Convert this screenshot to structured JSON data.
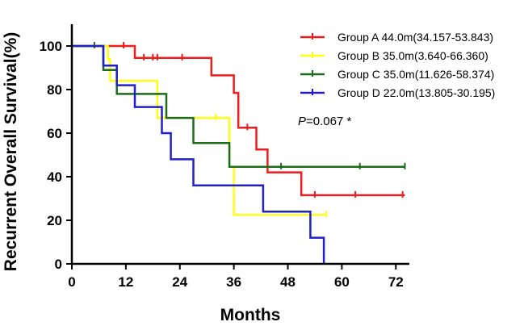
{
  "chart_data": {
    "type": "line",
    "subtype": "kaplan-meier step curve",
    "title": "",
    "xlabel": "Months",
    "ylabel": "Recurrent Overall Survival(%)",
    "xlim": [
      0,
      75
    ],
    "ylim": [
      0,
      110
    ],
    "x_ticks": [
      0,
      12,
      24,
      36,
      48,
      60,
      72
    ],
    "y_ticks": [
      0,
      20,
      40,
      60,
      80,
      100
    ],
    "annotation": {
      "italic": "P",
      "text": "=0.067 *"
    },
    "legend_position": "top-right",
    "series": [
      {
        "name": "Group A",
        "label": "Group A 44.0m(34.157-53.843)",
        "color": "#ee1c1c",
        "steps": [
          [
            0,
            100
          ],
          [
            14,
            100
          ],
          [
            14,
            94.5
          ],
          [
            31,
            94.5
          ],
          [
            31,
            86.5
          ],
          [
            36,
            86.5
          ],
          [
            36,
            78.5
          ],
          [
            37,
            78.5
          ],
          [
            37,
            62.5
          ],
          [
            41,
            62.5
          ],
          [
            41,
            52.5
          ],
          [
            43.5,
            52.5
          ],
          [
            43.5,
            42
          ],
          [
            51,
            42
          ],
          [
            51,
            31.5
          ],
          [
            74,
            31.5
          ]
        ],
        "censors": [
          [
            11.5,
            100
          ],
          [
            16,
            94.5
          ],
          [
            18,
            94.5
          ],
          [
            19,
            94.5
          ],
          [
            24.5,
            94.5
          ],
          [
            39,
            62.5
          ],
          [
            54,
            31.5
          ],
          [
            63,
            31.5
          ],
          [
            73.5,
            31.5
          ]
        ]
      },
      {
        "name": "Group B",
        "label": "Group B 35.0m(3.640-66.360)",
        "color": "#ffff14",
        "steps": [
          [
            0,
            100
          ],
          [
            8,
            100
          ],
          [
            8,
            94
          ],
          [
            8.5,
            94
          ],
          [
            8.5,
            84
          ],
          [
            19,
            84
          ],
          [
            19,
            67
          ],
          [
            35,
            67
          ],
          [
            35,
            44.5
          ],
          [
            36,
            44.5
          ],
          [
            36,
            22.5
          ],
          [
            56.5,
            22.5
          ]
        ],
        "censors": [
          [
            32,
            67
          ],
          [
            56.5,
            22.5
          ]
        ]
      },
      {
        "name": "Group C",
        "label": "Group C 35.0m(11.626-58.374)",
        "color": "#1a6b1a",
        "steps": [
          [
            0,
            100
          ],
          [
            7,
            100
          ],
          [
            7,
            89
          ],
          [
            10,
            89
          ],
          [
            10,
            78
          ],
          [
            21,
            78
          ],
          [
            21,
            67
          ],
          [
            27,
            67
          ],
          [
            27,
            55.5
          ],
          [
            35,
            55.5
          ],
          [
            35,
            44.5
          ],
          [
            74,
            44.5
          ]
        ],
        "censors": [
          [
            5,
            100
          ],
          [
            46.5,
            44.5
          ],
          [
            64,
            44.5
          ],
          [
            74,
            44.5
          ]
        ]
      },
      {
        "name": "Group D",
        "label": "Group D 22.0m(13.805-30.195)",
        "color": "#2020c8",
        "steps": [
          [
            0,
            100
          ],
          [
            7,
            100
          ],
          [
            7,
            91
          ],
          [
            10,
            91
          ],
          [
            10,
            82
          ],
          [
            14,
            82
          ],
          [
            14,
            72
          ],
          [
            20,
            72
          ],
          [
            20,
            60
          ],
          [
            22,
            60
          ],
          [
            22,
            48
          ],
          [
            27,
            48
          ],
          [
            27,
            36
          ],
          [
            42.5,
            36
          ],
          [
            42.5,
            24
          ],
          [
            53,
            24
          ],
          [
            53,
            12
          ],
          [
            56,
            12
          ],
          [
            56,
            0
          ]
        ],
        "censors": []
      }
    ]
  }
}
